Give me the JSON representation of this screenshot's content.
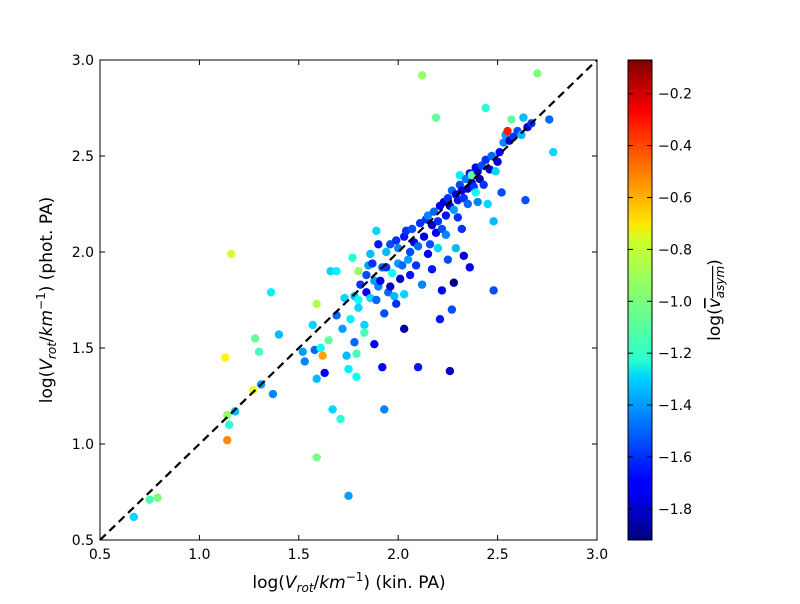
{
  "chart_data": {
    "type": "scatter",
    "title": "",
    "xlabel": "log(V_rot/km⁻¹) (kin. PA)",
    "ylabel": "log(V_rot/km⁻¹) (phot. PA)",
    "xlim": [
      0.5,
      3.0
    ],
    "ylim": [
      0.5,
      3.0
    ],
    "x_ticks": [
      "0.5",
      "1.0",
      "1.5",
      "2.0",
      "2.5",
      "3.0"
    ],
    "y_ticks": [
      "0.5",
      "1.0",
      "1.5",
      "2.0",
      "2.5",
      "3.0"
    ],
    "grid": false,
    "reference_line": {
      "style": "dashed",
      "color": "#000000",
      "from": [
        0.5,
        0.5
      ],
      "to": [
        3.0,
        3.0
      ]
    },
    "colorbar": {
      "label": "log(v_asym)",
      "range": [
        -1.92,
        -0.07
      ],
      "ticks": [
        "−0.2",
        "−0.4",
        "−0.6",
        "−0.8",
        "−1.0",
        "−1.2",
        "−1.4",
        "−1.6",
        "−1.8"
      ],
      "colormap": "jet"
    },
    "points": [
      [
        0.67,
        0.62,
        -1.3
      ],
      [
        0.75,
        0.71,
        -1.1
      ],
      [
        0.79,
        0.72,
        -1.0
      ],
      [
        1.14,
        1.02,
        -0.55
      ],
      [
        1.14,
        1.15,
        -0.95
      ],
      [
        1.15,
        1.1,
        -1.15
      ],
      [
        1.18,
        1.17,
        -1.35
      ],
      [
        1.13,
        1.45,
        -0.75
      ],
      [
        1.16,
        1.99,
        -0.85
      ],
      [
        1.27,
        1.28,
        -0.8
      ],
      [
        1.28,
        1.55,
        -1.05
      ],
      [
        1.3,
        1.48,
        -1.1
      ],
      [
        1.31,
        1.31,
        -1.4
      ],
      [
        1.37,
        1.26,
        -1.45
      ],
      [
        1.36,
        1.79,
        -1.25
      ],
      [
        1.4,
        1.57,
        -1.35
      ],
      [
        1.52,
        1.48,
        -1.4
      ],
      [
        1.53,
        1.43,
        -1.45
      ],
      [
        1.57,
        1.62,
        -1.3
      ],
      [
        1.58,
        1.49,
        -1.5
      ],
      [
        1.59,
        1.34,
        -1.35
      ],
      [
        1.59,
        1.73,
        -0.9
      ],
      [
        1.59,
        0.93,
        -1.0
      ],
      [
        1.61,
        1.5,
        -1.2
      ],
      [
        1.62,
        1.46,
        -0.6
      ],
      [
        1.63,
        1.37,
        -1.7
      ],
      [
        1.65,
        1.54,
        -1.05
      ],
      [
        1.66,
        1.9,
        -1.3
      ],
      [
        1.67,
        1.18,
        -1.3
      ],
      [
        1.69,
        1.67,
        -1.5
      ],
      [
        1.69,
        1.9,
        -1.25
      ],
      [
        1.71,
        1.13,
        -1.15
      ],
      [
        1.72,
        1.6,
        -1.4
      ],
      [
        1.73,
        1.76,
        -1.3
      ],
      [
        1.74,
        1.46,
        -1.35
      ],
      [
        1.75,
        0.73,
        -1.4
      ],
      [
        1.75,
        1.39,
        -1.25
      ],
      [
        1.76,
        1.65,
        -1.25
      ],
      [
        1.77,
        1.97,
        -1.15
      ],
      [
        1.78,
        1.77,
        -1.35
      ],
      [
        1.78,
        1.53,
        -1.5
      ],
      [
        1.79,
        1.47,
        -1.1
      ],
      [
        1.79,
        1.35,
        -1.2
      ],
      [
        1.8,
        1.75,
        -1.2
      ],
      [
        1.8,
        1.71,
        -1.3
      ],
      [
        1.8,
        1.9,
        -0.95
      ],
      [
        1.81,
        1.83,
        -1.6
      ],
      [
        1.83,
        1.62,
        -1.3
      ],
      [
        1.83,
        1.58,
        -1.1
      ],
      [
        1.84,
        1.79,
        -1.7
      ],
      [
        1.84,
        1.88,
        -1.55
      ],
      [
        1.85,
        1.93,
        -1.4
      ],
      [
        1.86,
        1.99,
        -1.35
      ],
      [
        1.86,
        1.76,
        -1.3
      ],
      [
        1.87,
        1.94,
        -1.6
      ],
      [
        1.88,
        1.85,
        -1.4
      ],
      [
        1.88,
        1.52,
        -1.7
      ],
      [
        1.89,
        2.11,
        -1.3
      ],
      [
        1.89,
        1.75,
        -1.5
      ],
      [
        1.9,
        2.04,
        -1.65
      ],
      [
        1.9,
        1.82,
        -1.45
      ],
      [
        1.91,
        1.85,
        -1.75
      ],
      [
        1.92,
        1.4,
        -1.7
      ],
      [
        1.92,
        1.92,
        -1.5
      ],
      [
        1.93,
        1.18,
        -1.45
      ],
      [
        1.93,
        1.68,
        -1.55
      ],
      [
        1.94,
        2.0,
        -1.35
      ],
      [
        1.94,
        1.92,
        -1.6
      ],
      [
        1.95,
        1.79,
        -1.5
      ],
      [
        1.96,
        2.04,
        -1.55
      ],
      [
        1.96,
        1.82,
        -1.8
      ],
      [
        1.97,
        1.89,
        -1.2
      ],
      [
        1.98,
        1.77,
        -1.35
      ],
      [
        1.99,
        1.73,
        -1.6
      ],
      [
        1.99,
        2.06,
        -1.6
      ],
      [
        2.0,
        1.94,
        -1.4
      ],
      [
        2.0,
        2.02,
        -1.45
      ],
      [
        2.01,
        1.86,
        -1.8
      ],
      [
        2.02,
        1.93,
        -1.5
      ],
      [
        2.03,
        1.6,
        -1.85
      ],
      [
        2.03,
        2.08,
        -1.65
      ],
      [
        2.03,
        1.78,
        -1.3
      ],
      [
        2.04,
        2.11,
        -1.6
      ],
      [
        2.05,
        1.96,
        -1.4
      ],
      [
        2.06,
        2.0,
        -1.55
      ],
      [
        2.06,
        1.88,
        -1.65
      ],
      [
        2.07,
        2.12,
        -1.55
      ],
      [
        2.08,
        2.05,
        -1.7
      ],
      [
        2.09,
        1.93,
        -1.6
      ],
      [
        2.1,
        2.03,
        -1.5
      ],
      [
        2.1,
        1.4,
        -1.65
      ],
      [
        2.11,
        2.15,
        -1.6
      ],
      [
        2.12,
        2.92,
        -0.95
      ],
      [
        2.12,
        1.83,
        -1.45
      ],
      [
        2.13,
        2.08,
        -1.75
      ],
      [
        2.14,
        2.17,
        -1.6
      ],
      [
        2.15,
        1.99,
        -1.7
      ],
      [
        2.15,
        2.19,
        -1.45
      ],
      [
        2.16,
        2.04,
        -1.55
      ],
      [
        2.17,
        2.14,
        -1.8
      ],
      [
        2.17,
        1.91,
        -1.65
      ],
      [
        2.18,
        2.21,
        -1.5
      ],
      [
        2.19,
        2.1,
        -1.7
      ],
      [
        2.19,
        2.7,
        -1.05
      ],
      [
        2.2,
        2.16,
        -1.6
      ],
      [
        2.2,
        2.02,
        -1.3
      ],
      [
        2.21,
        2.24,
        -1.7
      ],
      [
        2.21,
        1.65,
        -1.65
      ],
      [
        2.22,
        1.8,
        -1.7
      ],
      [
        2.22,
        2.12,
        -1.55
      ],
      [
        2.23,
        2.26,
        -1.75
      ],
      [
        2.24,
        2.19,
        -1.65
      ],
      [
        2.24,
        2.09,
        -1.45
      ],
      [
        2.25,
        2.28,
        -1.6
      ],
      [
        2.25,
        1.96,
        -1.55
      ],
      [
        2.26,
        2.24,
        -1.8
      ],
      [
        2.26,
        1.38,
        -1.8
      ],
      [
        2.27,
        2.32,
        -1.5
      ],
      [
        2.27,
        1.7,
        -1.55
      ],
      [
        2.28,
        1.84,
        -1.9
      ],
      [
        2.28,
        2.22,
        -1.4
      ],
      [
        2.29,
        2.3,
        -1.7
      ],
      [
        2.29,
        2.02,
        -1.35
      ],
      [
        2.3,
        2.27,
        -1.65
      ],
      [
        2.3,
        2.18,
        -1.6
      ],
      [
        2.31,
        2.35,
        -1.55
      ],
      [
        2.31,
        2.4,
        -1.25
      ],
      [
        2.32,
        2.12,
        -1.6
      ],
      [
        2.32,
        2.32,
        -1.75
      ],
      [
        2.33,
        1.98,
        -1.75
      ],
      [
        2.33,
        2.28,
        -1.6
      ],
      [
        2.34,
        2.38,
        -1.45
      ],
      [
        2.35,
        2.33,
        -1.8
      ],
      [
        2.35,
        2.25,
        -1.5
      ],
      [
        2.36,
        1.92,
        -1.7
      ],
      [
        2.36,
        2.41,
        -1.65
      ],
      [
        2.37,
        2.36,
        -1.9
      ],
      [
        2.37,
        2.4,
        -1.05
      ],
      [
        2.38,
        2.34,
        -1.6
      ],
      [
        2.39,
        2.44,
        -1.7
      ],
      [
        2.39,
        2.31,
        -1.2
      ],
      [
        2.4,
        2.26,
        -1.45
      ],
      [
        2.4,
        2.42,
        -1.75
      ],
      [
        2.41,
        2.38,
        -1.85
      ],
      [
        2.42,
        2.45,
        -1.55
      ],
      [
        2.43,
        2.35,
        -1.6
      ],
      [
        2.44,
        2.75,
        -1.15
      ],
      [
        2.44,
        2.48,
        -1.6
      ],
      [
        2.45,
        2.25,
        -1.3
      ],
      [
        2.46,
        2.43,
        -1.8
      ],
      [
        2.47,
        2.5,
        -1.5
      ],
      [
        2.48,
        2.16,
        -1.35
      ],
      [
        2.48,
        1.8,
        -1.55
      ],
      [
        2.49,
        2.42,
        -1.3
      ],
      [
        2.5,
        2.47,
        -1.75
      ],
      [
        2.51,
        2.52,
        -1.7
      ],
      [
        2.52,
        2.31,
        -1.55
      ],
      [
        2.53,
        2.57,
        -1.45
      ],
      [
        2.54,
        2.61,
        -1.4
      ],
      [
        2.55,
        2.63,
        -0.35
      ],
      [
        2.56,
        2.58,
        -1.8
      ],
      [
        2.57,
        2.69,
        -1.05
      ],
      [
        2.58,
        2.6,
        -1.6
      ],
      [
        2.6,
        2.63,
        -1.55
      ],
      [
        2.62,
        2.61,
        -1.35
      ],
      [
        2.63,
        2.7,
        -1.35
      ],
      [
        2.64,
        2.27,
        -1.55
      ],
      [
        2.65,
        2.65,
        -1.75
      ],
      [
        2.67,
        2.67,
        -1.6
      ],
      [
        2.7,
        2.93,
        -1.0
      ],
      [
        2.76,
        2.69,
        -1.5
      ],
      [
        2.78,
        2.52,
        -1.3
      ]
    ]
  }
}
